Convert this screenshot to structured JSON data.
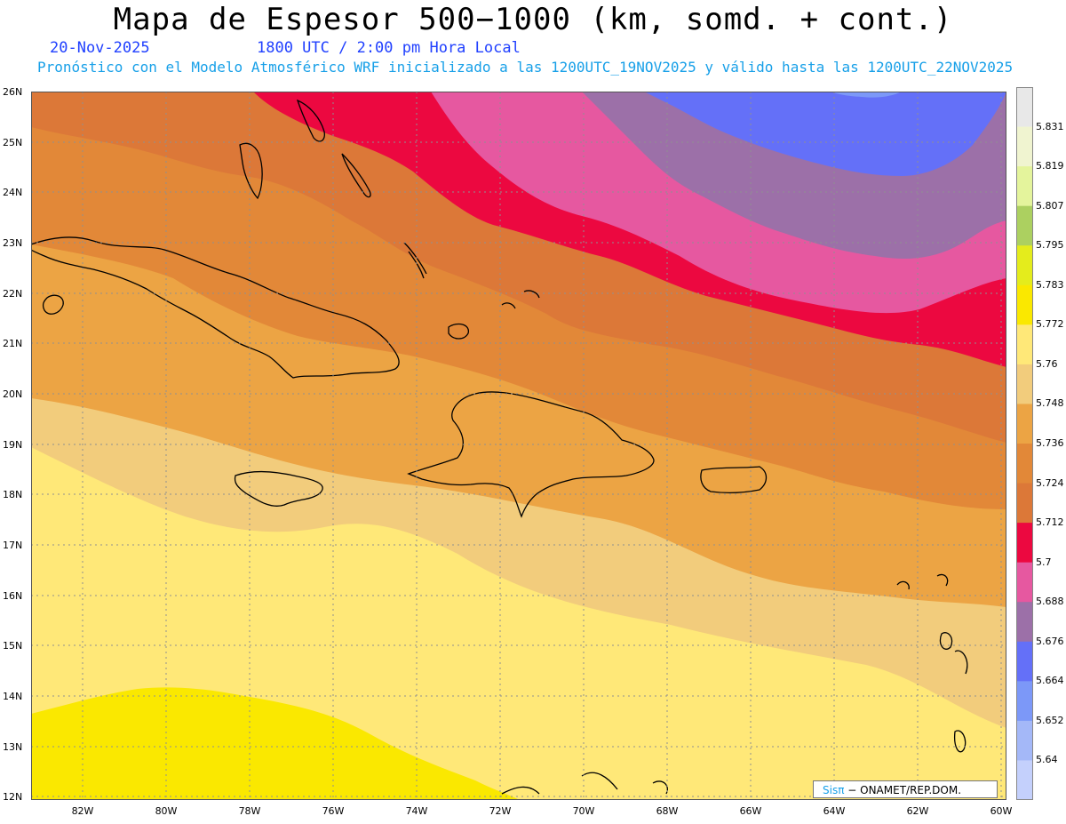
{
  "title": "Mapa de Espesor 500−1000 (km, somd. + cont.)",
  "date_label": "20-Nov-2025",
  "time_label": "1800 UTC / 2:00 pm Hora Local",
  "model_label": "Pronóstico con el Modelo Atmosférico WRF inicializado a las 1200UTC_19NOV2025 y válido hasta las  1200UTC_22NOV2025",
  "credit": {
    "brand": "Sisπ",
    "org": "− ONAMET/REP.DOM."
  },
  "lat_labels": [
    "26N",
    "25N",
    "24N",
    "23N",
    "22N",
    "21N",
    "20N",
    "19N",
    "18N",
    "17N",
    "16N",
    "15N",
    "14N",
    "13N",
    "12N"
  ],
  "lon_labels": [
    "82W",
    "80W",
    "78W",
    "76W",
    "74W",
    "72W",
    "70W",
    "68W",
    "66W",
    "64W",
    "62W",
    "60W"
  ],
  "colorbar": {
    "labels": [
      "5.831",
      "5.819",
      "5.807",
      "5.795",
      "5.783",
      "5.772",
      "5.76",
      "5.748",
      "5.736",
      "5.724",
      "5.712",
      "5.7",
      "5.688",
      "5.676",
      "5.664",
      "5.652",
      "5.64"
    ],
    "colors": [
      "#e8e8e8",
      "#f0f4d0",
      "#e4f49c",
      "#acd060",
      "#e4ec1c",
      "#fae800",
      "#ffe878",
      "#f2cc7c",
      "#eca444",
      "#e28838",
      "#dc7838",
      "#ec0840",
      "#e658a0",
      "#9c70a8",
      "#6470f8",
      "#7c98f8",
      "#a4b8f8",
      "#c4d0fc"
    ]
  },
  "map_bands": [
    "#fae800",
    "#ffe878",
    "#f2cc7c",
    "#eca444",
    "#e28838",
    "#dc7838",
    "#ec0840",
    "#e658a0",
    "#9c70a8",
    "#6470f8"
  ]
}
